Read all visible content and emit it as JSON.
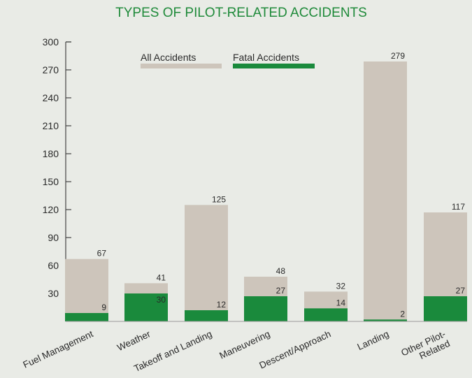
{
  "chart_data": {
    "type": "bar",
    "title": "TYPES OF PILOT-RELATED ACCIDENTS",
    "categories": [
      "Fuel Management",
      "Weather",
      "Takeoff and Landing",
      "Maneuvering",
      "Descent/Approach",
      "Landing",
      "Other Pilot-Related"
    ],
    "series": [
      {
        "name": "All Accidents",
        "values": [
          67,
          41,
          125,
          48,
          32,
          279,
          117
        ],
        "color": "#cdc5bb"
      },
      {
        "name": "Fatal Accidents",
        "values": [
          9,
          30,
          12,
          27,
          14,
          2,
          27
        ],
        "color": "#1a8a3c"
      }
    ],
    "yticks": [
      30,
      60,
      90,
      120,
      150,
      180,
      210,
      240,
      270,
      300
    ],
    "ylim": [
      0,
      300
    ],
    "legend": "top",
    "grid": false,
    "colors": {
      "title": "#1f8a3a",
      "background": "#e9ebe6",
      "text": "#2a2a2a"
    }
  }
}
